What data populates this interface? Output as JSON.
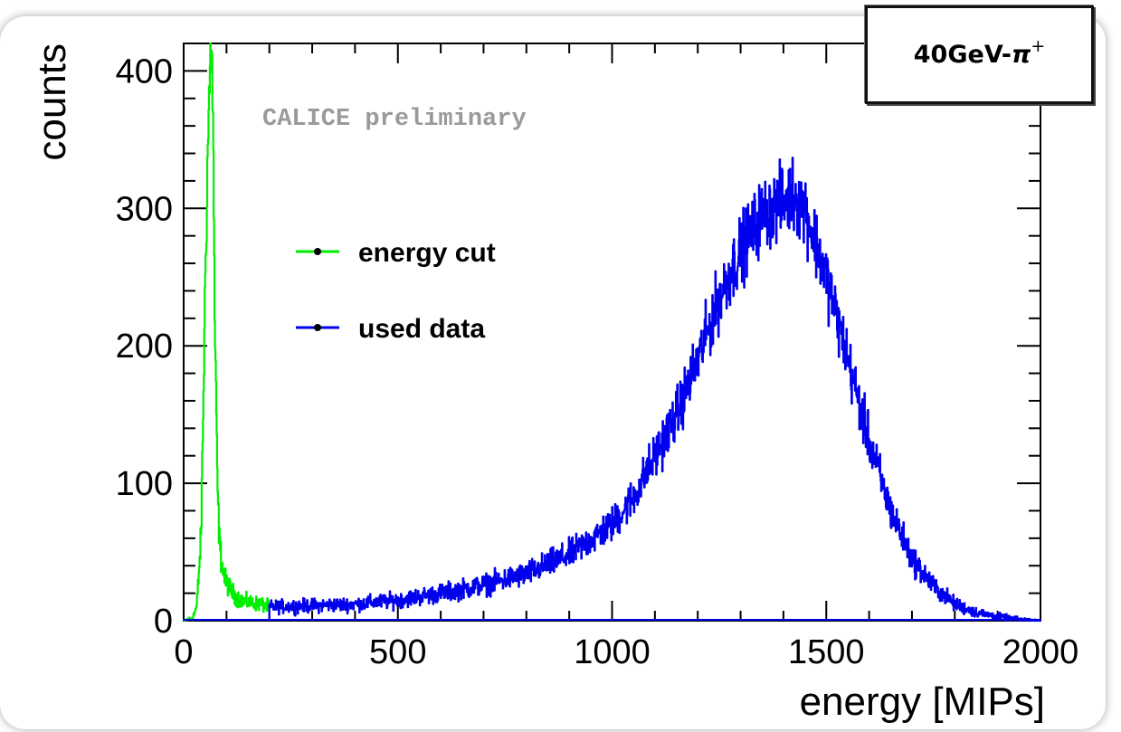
{
  "badge": {
    "main": "40GeV-",
    "symbol": "π",
    "sup": "+"
  },
  "chart_data": {
    "type": "histogram",
    "xlabel": "energy [MIPs]",
    "ylabel": "counts",
    "annotation": "CALICE preliminary",
    "xlim": [
      0,
      2000
    ],
    "ylim": [
      0,
      420
    ],
    "xticks": [
      0,
      500,
      1000,
      1500,
      2000
    ],
    "yticks": [
      0,
      100,
      200,
      300,
      400
    ],
    "legend": "top-left",
    "series": [
      {
        "name": "energy cut",
        "color": "#00ee00",
        "x": [
          0,
          20,
          30,
          40,
          45,
          50,
          55,
          58,
          62,
          65,
          68,
          70,
          72,
          75,
          78,
          80,
          85,
          90,
          95,
          100,
          110,
          120,
          130,
          140,
          160,
          180,
          200
        ],
        "y": [
          0,
          2,
          10,
          60,
          150,
          250,
          330,
          370,
          410,
          420,
          360,
          300,
          220,
          160,
          110,
          80,
          50,
          40,
          30,
          28,
          22,
          18,
          16,
          14,
          13,
          12,
          10
        ]
      },
      {
        "name": "used data",
        "color": "#0000ee",
        "x": [
          200,
          300,
          400,
          500,
          600,
          700,
          800,
          900,
          1000,
          1050,
          1100,
          1150,
          1200,
          1250,
          1300,
          1350,
          1400,
          1420,
          1450,
          1500,
          1550,
          1600,
          1650,
          1700,
          1750,
          1800,
          1850,
          1900,
          1950,
          2000
        ],
        "y": [
          10,
          11,
          12,
          15,
          20,
          26,
          34,
          48,
          70,
          90,
          120,
          150,
          190,
          235,
          270,
          295,
          305,
          310,
          300,
          250,
          190,
          130,
          80,
          45,
          25,
          12,
          6,
          3,
          1,
          0
        ]
      }
    ]
  }
}
